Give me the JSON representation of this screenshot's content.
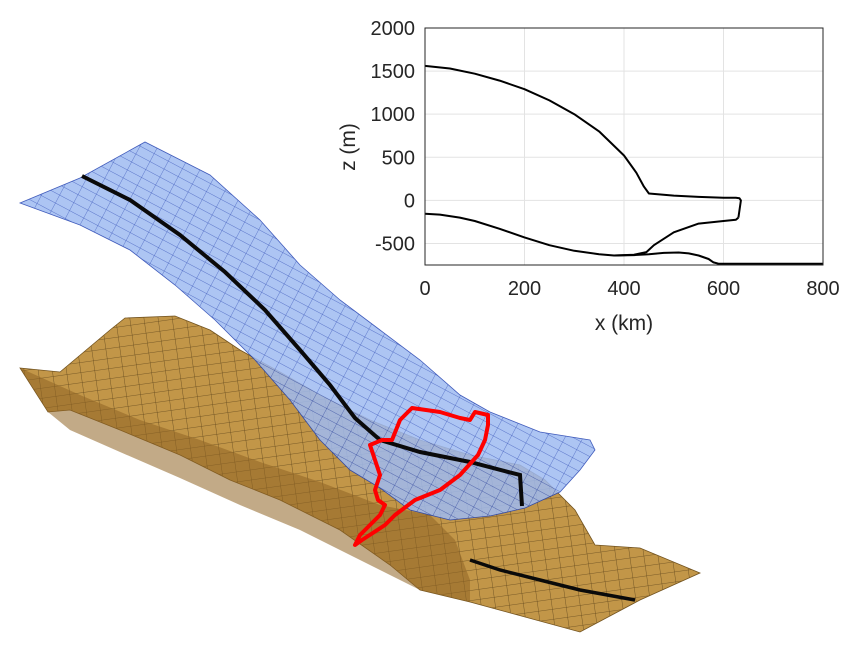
{
  "chart_data": [
    {
      "type": "surface",
      "surfaces": [
        "ice-surface",
        "bed-topography"
      ],
      "colors": {
        "ice": "#8fb0f0",
        "bed": "#b8893e",
        "grounding_line": "#ff0000",
        "flowline": "#000000"
      }
    },
    {
      "type": "line",
      "xlabel": "x (km)",
      "ylabel": "z (m)",
      "xlim": [
        0,
        800
      ],
      "ylim": [
        -750,
        2000
      ],
      "xticks": [
        0,
        200,
        400,
        600,
        800
      ],
      "yticks": [
        2000,
        1500,
        1000,
        500,
        0,
        -500
      ],
      "grid": true,
      "series": [
        {
          "x": [
            0,
            50,
            100,
            150,
            200,
            250,
            300,
            350,
            400,
            425,
            440,
            450,
            500,
            550,
            600,
            625,
            632,
            635,
            630
          ],
          "values": [
            1560,
            1530,
            1470,
            1390,
            1290,
            1160,
            1000,
            800,
            520,
            320,
            160,
            80,
            55,
            40,
            30,
            30,
            25,
            0,
            -200
          ]
        },
        {
          "x": [
            0,
            30,
            70,
            100,
            150,
            200,
            250,
            300,
            350,
            380,
            420,
            445,
            460,
            500,
            550,
            600,
            625,
            630
          ],
          "values": [
            -155,
            -165,
            -200,
            -240,
            -330,
            -430,
            -520,
            -585,
            -625,
            -640,
            -630,
            -600,
            -520,
            -370,
            -270,
            -240,
            -225,
            -200
          ]
        },
        {
          "x": [
            380,
            420,
            450,
            480,
            510,
            530,
            550,
            570,
            580,
            590,
            800
          ],
          "values": [
            -640,
            -635,
            -625,
            -610,
            -605,
            -615,
            -640,
            -680,
            -720,
            -735,
            -735
          ]
        }
      ]
    }
  ]
}
